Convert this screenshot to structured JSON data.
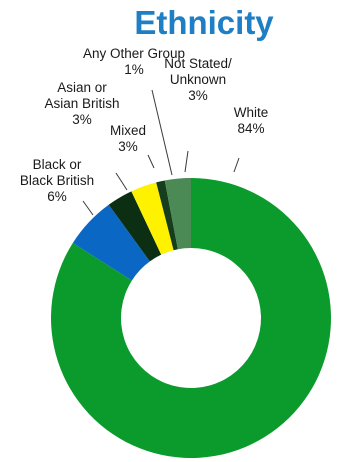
{
  "chart_data": {
    "type": "pie",
    "style": "donut",
    "title": "Ethnicity",
    "start": "top, clockwise",
    "slices": [
      {
        "label_lines": [
          "White",
          "84%"
        ],
        "value": 84,
        "color": "#0a9b2c"
      },
      {
        "label_lines": [
          "Black or",
          "Black British",
          "6%"
        ],
        "value": 6,
        "color": "#0b67c4"
      },
      {
        "label_lines": [
          "Asian or",
          "Asian British",
          "3%"
        ],
        "value": 3,
        "color": "#0c2e12"
      },
      {
        "label_lines": [
          "Mixed",
          "3%"
        ],
        "value": 3,
        "color": "#fff200"
      },
      {
        "label_lines": [
          "Any Other Group",
          "1%"
        ],
        "value": 1,
        "color": "#163d1c"
      },
      {
        "label_lines": [
          "Not Stated/",
          "Unknown",
          "3%"
        ],
        "value": 3,
        "color": "#4b8a55"
      }
    ]
  }
}
